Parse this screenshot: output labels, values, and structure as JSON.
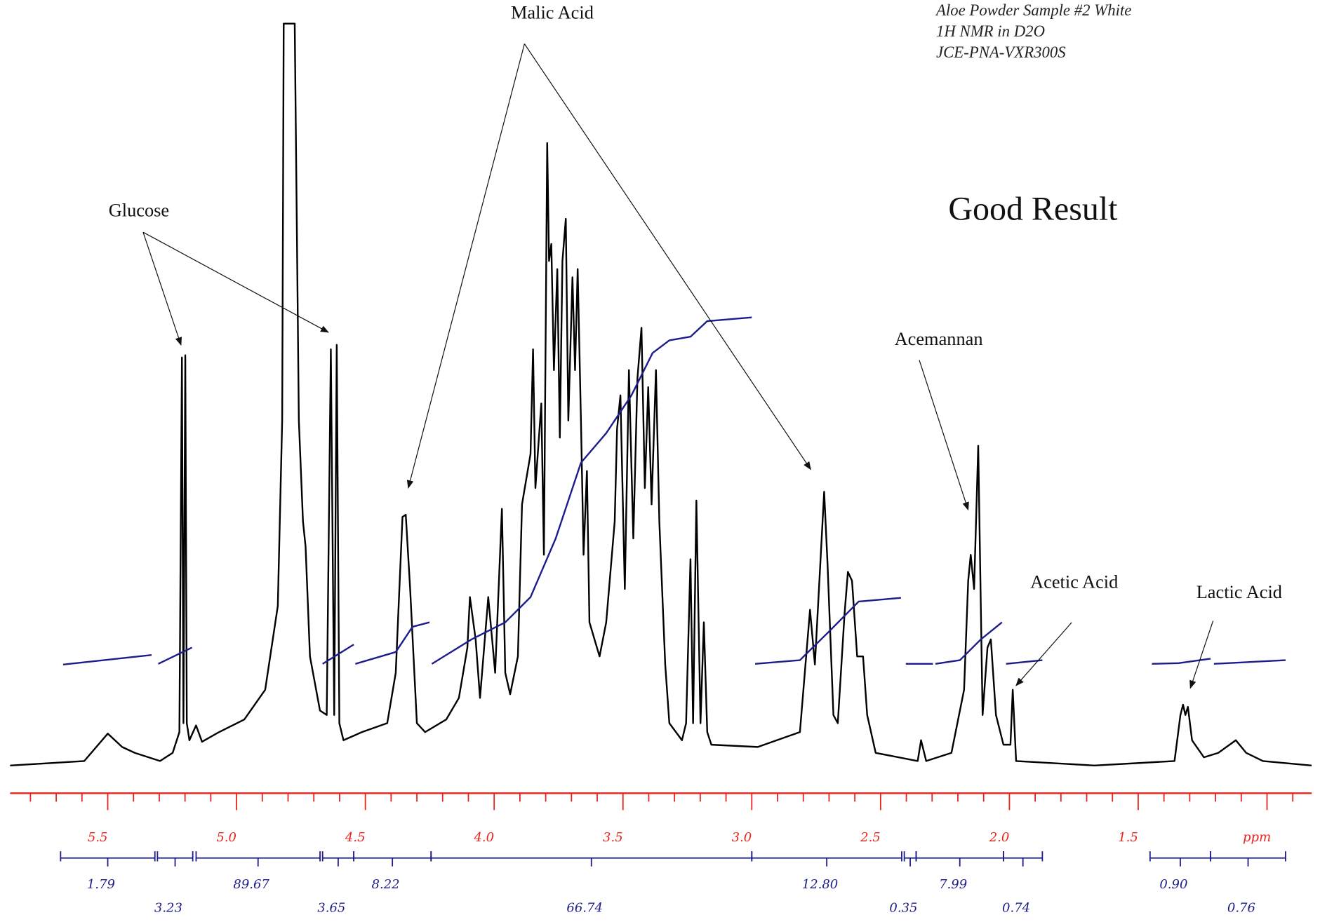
{
  "chart_data": {
    "type": "line",
    "title": "Good Result",
    "subtitle": [
      "Aloe Powder Sample #2 White",
      "1H NMR in D2O",
      "JCE-PNA-VXR300S"
    ],
    "annotations": [
      "Glucose",
      "Malic Acid",
      "Acemannan",
      "Acetic Acid",
      "Lactic Acid"
    ],
    "xlim": [
      5.879,
      0.827
    ],
    "ylim": [
      0,
      100
    ],
    "xticks": [
      {
        "value": 5.5,
        "label": "5.5"
      },
      {
        "value": 5,
        "label": "5.0"
      },
      {
        "value": 4.5,
        "label": "4.5"
      },
      {
        "value": 4,
        "label": "4.0"
      },
      {
        "value": 3.5,
        "label": "3.5"
      },
      {
        "value": 3,
        "label": "3.0"
      },
      {
        "value": 2.5,
        "label": "2.5"
      },
      {
        "value": 2,
        "label": "2.0"
      },
      {
        "value": 1.5,
        "label": "1.5"
      },
      {
        "value": 1,
        "label": "ppm"
      }
    ],
    "xminor_ticks": [
      5.8,
      5.7,
      5.6,
      5.4,
      5.3,
      5.2,
      5.1,
      4.9,
      4.8,
      4.7,
      4.6,
      4.4,
      4.3,
      4.2,
      4.1,
      3.9,
      3.8,
      3.7,
      3.6,
      3.4,
      3.3,
      3.2,
      3.1,
      2.9,
      2.8,
      2.7,
      2.6,
      2.4,
      2.3,
      2.2,
      2.1,
      1.9,
      1.8,
      1.7,
      1.6,
      1.4,
      1.3,
      1.2,
      1.1,
      0.9
    ],
    "axis_color": "#e8231c",
    "series": [
      {
        "color": "#000000",
        "x": [
          5.879,
          5.591,
          5.5,
          5.444,
          5.395,
          5.297,
          5.248,
          5.222,
          5.212,
          5.206,
          5.199,
          5.193,
          5.183,
          5.157,
          5.134,
          5.068,
          4.97,
          4.889,
          4.84,
          4.823,
          4.817,
          4.774,
          4.758,
          4.742,
          4.732,
          4.715,
          4.676,
          4.65,
          4.634,
          4.621,
          4.611,
          4.601,
          4.585,
          4.513,
          4.415,
          4.382,
          4.356,
          4.343,
          4.326,
          4.3,
          4.268,
          4.186,
          4.137,
          4.104,
          4.094,
          4.072,
          4.055,
          4.023,
          3.996,
          3.97,
          3.957,
          3.938,
          3.908,
          3.892,
          3.859,
          3.849,
          3.84,
          3.817,
          3.807,
          3.794,
          3.787,
          3.778,
          3.768,
          3.755,
          3.745,
          3.735,
          3.722,
          3.712,
          3.696,
          3.686,
          3.676,
          3.663,
          3.653,
          3.64,
          3.63,
          3.591,
          3.565,
          3.532,
          3.523,
          3.51,
          3.493,
          3.477,
          3.46,
          3.444,
          3.428,
          3.415,
          3.402,
          3.389,
          3.372,
          3.359,
          3.336,
          3.32,
          3.271,
          3.255,
          3.238,
          3.228,
          3.215,
          3.199,
          3.186,
          3.173,
          3.157,
          2.977,
          2.813,
          2.774,
          2.755,
          2.732,
          2.719,
          2.706,
          2.683,
          2.666,
          2.64,
          2.627,
          2.611,
          2.591,
          2.568,
          2.552,
          2.519,
          2.356,
          2.343,
          2.323,
          2.225,
          2.176,
          2.16,
          2.15,
          2.137,
          2.121,
          2.104,
          2.085,
          2.072,
          2.052,
          2.023,
          1.996,
          1.987,
          1.974,
          1.67,
          1.359,
          1.336,
          1.326,
          1.317,
          1.307,
          1.291,
          1.245,
          1.189,
          1.121,
          1.081,
          1.016,
          0.827
        ],
        "values": [
          0,
          0.6,
          4.3,
          2.5,
          1.7,
          0.6,
          1.7,
          4.5,
          55.0,
          5.7,
          55.3,
          5.7,
          3.4,
          5.4,
          3.2,
          4.5,
          6.2,
          10.2,
          21.5,
          46.5,
          100,
          100,
          46.5,
          32.9,
          29.5,
          14.7,
          7.4,
          6.8,
          56.1,
          6.8,
          56.7,
          5.7,
          3.4,
          4.5,
          5.7,
          12.5,
          33.5,
          33.8,
          23.8,
          5.7,
          4.5,
          6.2,
          9.1,
          15.9,
          22.7,
          17.0,
          9.1,
          22.7,
          12.5,
          34.6,
          12.5,
          9.6,
          14.7,
          35.2,
          42.0,
          56.1,
          37.4,
          48.8,
          28.4,
          83.9,
          68.0,
          70.3,
          53.3,
          66.9,
          44.2,
          68.0,
          73.7,
          46.5,
          65.8,
          53.3,
          66.9,
          46.5,
          28.4,
          39.7,
          19.3,
          14.7,
          19.3,
          32.9,
          45.4,
          49.9,
          23.8,
          53.3,
          30.6,
          52.2,
          59.0,
          37.4,
          51.0,
          35.2,
          53.3,
          32.9,
          13.6,
          5.7,
          3.4,
          5.7,
          27.8,
          5.7,
          35.7,
          5.7,
          19.3,
          4.5,
          2.8,
          2.5,
          4.5,
          21.0,
          13.6,
          28.4,
          36.9,
          27.2,
          6.8,
          5.7,
          20.4,
          26.1,
          24.9,
          14.7,
          14.7,
          6.8,
          1.7,
          0.6,
          3.4,
          0.6,
          1.7,
          10.2,
          24.9,
          28.4,
          23.8,
          43.1,
          6.8,
          15.9,
          17.0,
          6.8,
          2.8,
          2.8,
          10.2,
          0.6,
          0,
          0.6,
          6.8,
          8.2,
          6.8,
          7.9,
          3.4,
          1.1,
          1.7,
          3.4,
          1.7,
          0.6,
          0
        ]
      },
      {
        "color": "#1c1c8c",
        "x": [
          5.673,
          5.33,
          null,
          5.304,
          5.173,
          null,
          4.666,
          4.545,
          null,
          4.539,
          4.382,
          4.317,
          4.251,
          null,
          4.242,
          4.088,
          3.957,
          3.859,
          3.761,
          3.663,
          3.565,
          3.467,
          3.385,
          3.32,
          3.238,
          3.173,
          3.0,
          null,
          2.987,
          2.813,
          2.699,
          2.585,
          2.421,
          null,
          2.402,
          2.297,
          null,
          2.287,
          2.192,
          2.111,
          2.029,
          null,
          2.013,
          1.872,
          null,
          1.447,
          1.343,
          1.219,
          null,
          1.206,
          0.928
        ],
        "values": [
          13.6,
          14.9,
          null,
          13.7,
          15.9,
          null,
          13.7,
          16.3,
          null,
          13.7,
          15.3,
          18.7,
          19.3,
          null,
          13.7,
          17.0,
          19.3,
          22.7,
          30.6,
          40.8,
          44.8,
          49.9,
          55.6,
          57.3,
          57.8,
          59.9,
          60.4,
          null,
          13.7,
          14.2,
          18.1,
          22.1,
          22.6,
          null,
          13.7,
          13.7,
          null,
          13.7,
          14.2,
          17.0,
          19.3,
          null,
          13.7,
          14.2,
          null,
          13.7,
          13.8,
          14.4,
          null,
          13.7,
          14.2
        ]
      }
    ],
    "integrals": {
      "color": "#1c1c8c",
      "ranges": [
        [
          5.683,
          5.317
        ],
        [
          5.307,
          5.17
        ],
        [
          5.157,
          4.676
        ],
        [
          4.666,
          4.545
        ],
        [
          4.545,
          4.245
        ],
        [
          4.245,
          3.0
        ],
        [
          3.0,
          2.418
        ],
        [
          2.408,
          2.362
        ],
        [
          2.362,
          2.023
        ],
        [
          2.023,
          1.872
        ],
        [
          1.454,
          1.219
        ],
        [
          1.219,
          0.928
        ]
      ],
      "values": [
        1.79,
        3.23,
        89.67,
        3.65,
        8.22,
        66.74,
        12.8,
        0.35,
        7.99,
        0.74,
        0.9,
        0.76
      ],
      "value_labels": [
        "1.79",
        "3.23",
        "89.67",
        "3.65",
        "8.22",
        "66.74",
        "12.80",
        "0.35",
        "7.99",
        "0.74",
        "0.90",
        "0.76"
      ]
    }
  }
}
